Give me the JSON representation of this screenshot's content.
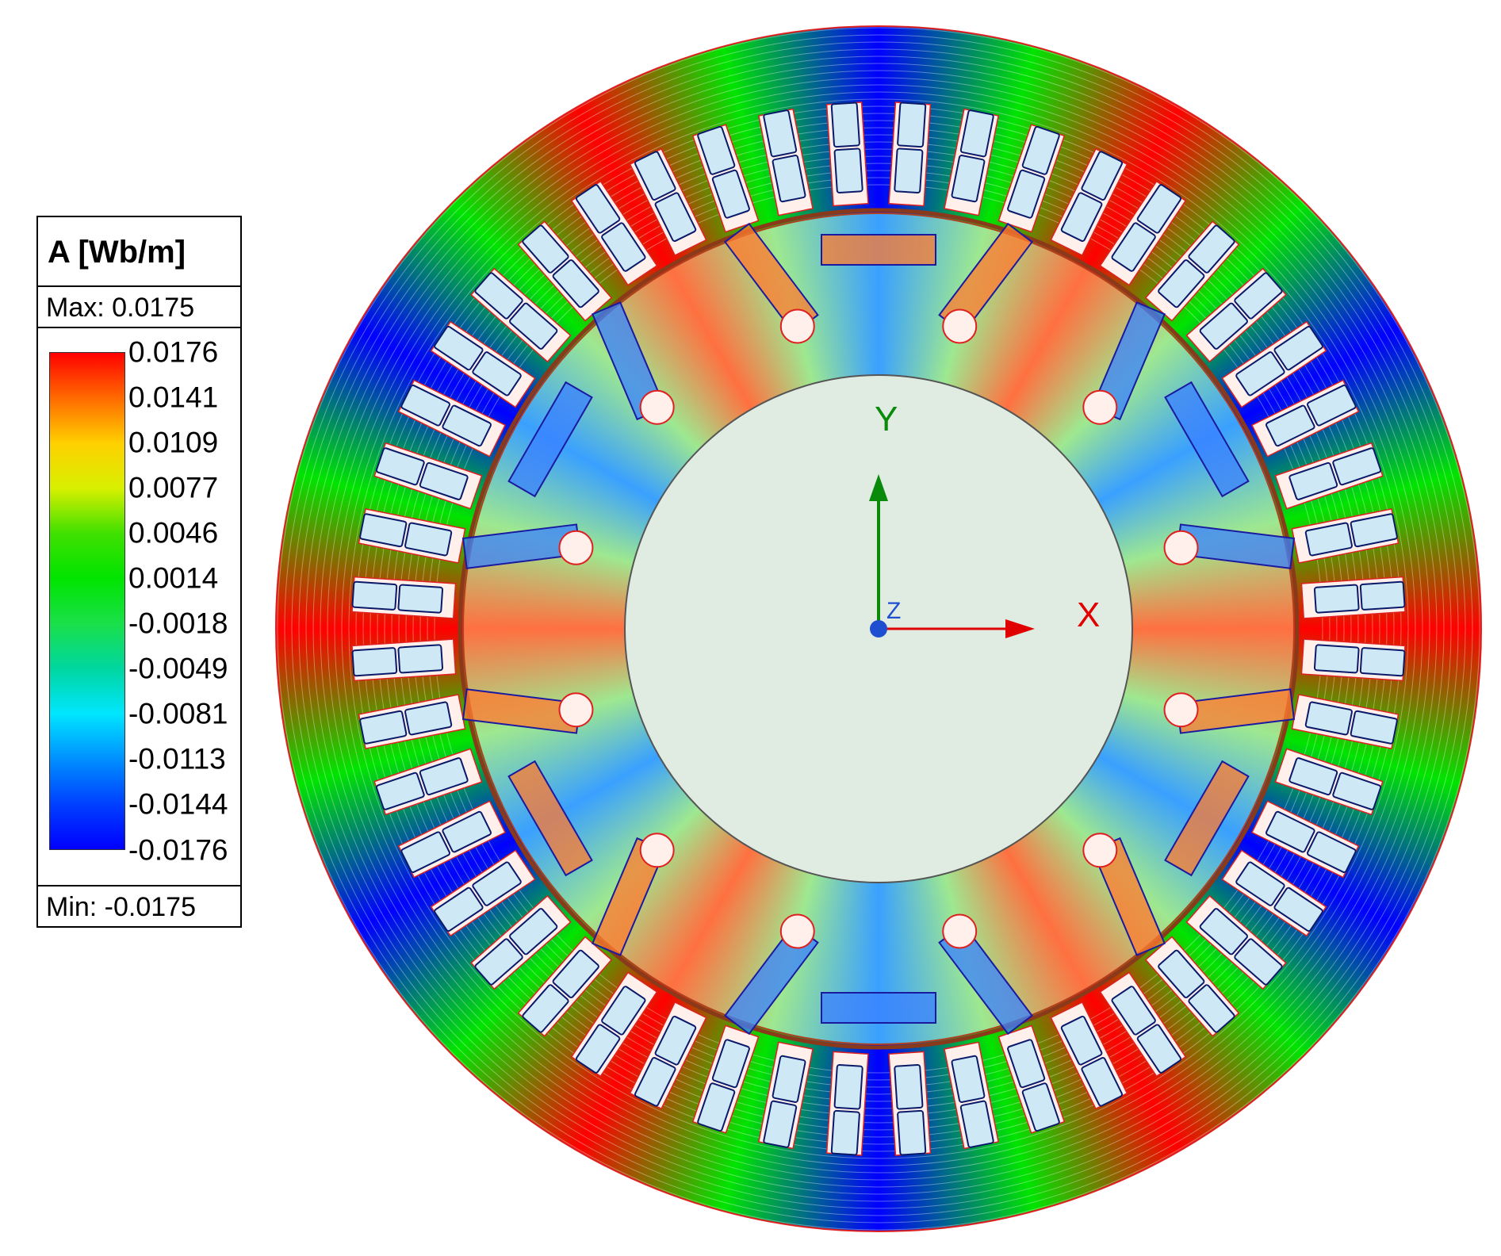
{
  "legend": {
    "title": "A [Wb/m]",
    "max_label": "Max: 0.0175",
    "min_label": "Min: -0.0175",
    "ticks": [
      "0.0176",
      "0.0141",
      "0.0109",
      "0.0077",
      "0.0046",
      "0.0014",
      "-0.0018",
      "-0.0049",
      "-0.0081",
      "-0.0113",
      "-0.0144",
      "-0.0176"
    ],
    "colors": [
      "#ff0000",
      "#ff6a00",
      "#ffd000",
      "#d8f000",
      "#40e000",
      "#00e400",
      "#1ae04a",
      "#00d6a0",
      "#00e6ff",
      "#0090ff",
      "#0040ff",
      "#0000ff"
    ]
  },
  "axes": {
    "x_label": "X",
    "y_label": "Y",
    "z_label": "Z",
    "x_color": "#e00000",
    "y_color": "#0a8a0a",
    "z_color": "#1f4fd0"
  },
  "model": {
    "stator_slots": 48,
    "rotor_poles": 6,
    "magnets_per_pole": 3,
    "rotor_holes": 12,
    "palette": {
      "low": "#0000ff",
      "mid": "#00e400",
      "high": "#ff0000",
      "slot_fill": "#cfe8f5",
      "slot_stroke": "#0a1a6a",
      "shaft_fill": "#e0ece2",
      "outline": "#e02020"
    }
  }
}
